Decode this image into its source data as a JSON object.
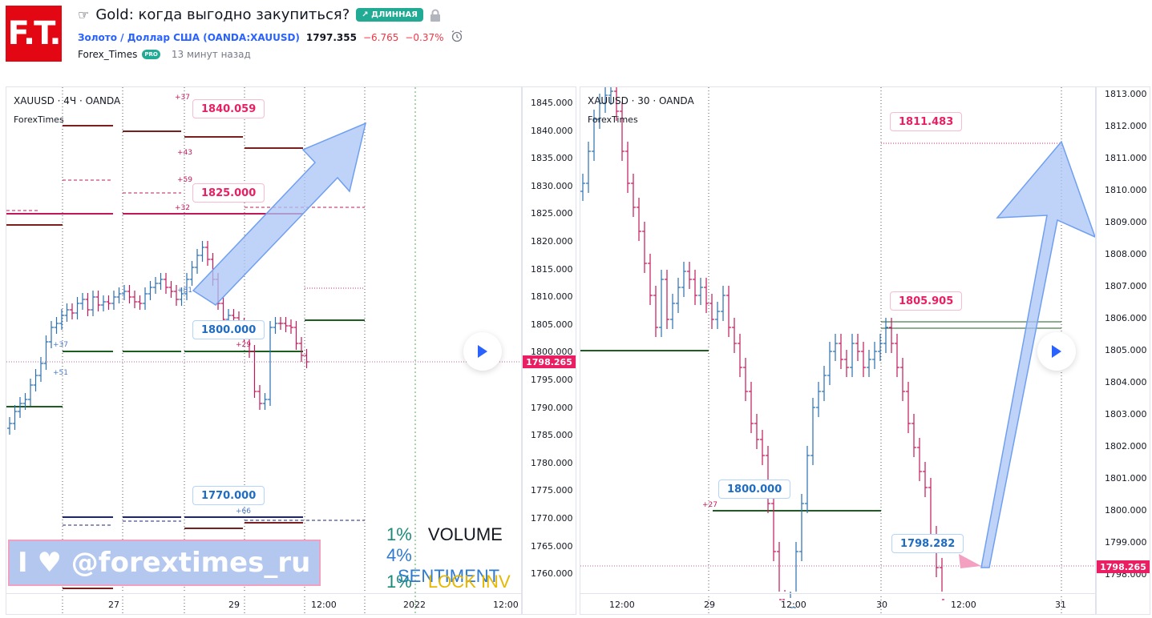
{
  "header": {
    "logo_text": "F.T.",
    "title": "Gold: когда выгодно закупиться?",
    "badge": "ДЛИННАЯ",
    "symbol": "Золото / Доллар США (OANDA:XAUUSD)",
    "price": "1797.355",
    "change": "−6.765",
    "change_pct": "−0.37%",
    "author": "Forex_Times",
    "author_badge": "PRO",
    "time_ago": "13 минут назад"
  },
  "chart_left": {
    "label": "XAUUSD · 4Ч · OANDA",
    "sub": "ForexTimes",
    "callouts": [
      "1840.059",
      "1825.000",
      "1800.000",
      "1770.000"
    ],
    "small_labels": [
      "+37",
      "+43",
      "+59",
      "+32",
      "+81",
      "+37",
      "+51",
      "+29",
      "+66"
    ],
    "x_labels": [
      "27",
      "29",
      "12:00",
      "2022",
      "12:00"
    ],
    "y_ticks": [
      "1845.000",
      "1840.000",
      "1835.000",
      "1830.000",
      "1825.000",
      "1820.000",
      "1815.000",
      "1810.000",
      "1805.000",
      "1800.000",
      "1795.000",
      "1790.000",
      "1785.000",
      "1780.000",
      "1775.000",
      "1770.000",
      "1765.000",
      "1760.000"
    ],
    "current_price": "1798.265",
    "banner": "I ♥ @forextimes_ru",
    "legend": [
      {
        "pct": "1%",
        "name": "VOLUME",
        "pct_color": "#1b8a7a",
        "name_color": "#131722"
      },
      {
        "pct": "4%",
        "name": "SENTIMENT",
        "pct_color": "#2e7ad1",
        "name_color": "#2e7ad1"
      },
      {
        "pct": "1%",
        "name": "LOCK INV",
        "pct_color": "#1b8a7a",
        "name_color": "#e6b800"
      }
    ]
  },
  "chart_right": {
    "label": "XAUUSD · 30 · OANDA",
    "sub": "ForexTimes",
    "callouts": [
      "1811.483",
      "1805.905",
      "1800.000",
      "1798.282"
    ],
    "small_labels": [
      "+27"
    ],
    "x_labels": [
      "12:00",
      "29",
      "12:00",
      "30",
      "12:00",
      "31"
    ],
    "y_ticks": [
      "1813.000",
      "1812.000",
      "1811.000",
      "1810.000",
      "1809.000",
      "1808.000",
      "1807.000",
      "1806.000",
      "1805.000",
      "1804.000",
      "1803.000",
      "1802.000",
      "1801.000",
      "1800.000",
      "1799.000",
      "1798.000"
    ],
    "current_price": "1798.265"
  }
}
